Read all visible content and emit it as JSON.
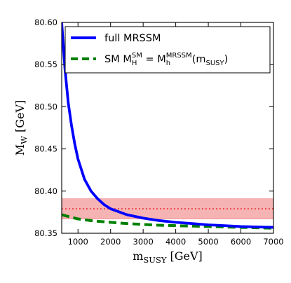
{
  "chart_data": {
    "type": "line",
    "title": "",
    "xlabel": {
      "base": "m",
      "sub": "SUSY",
      "unit": " [GeV]"
    },
    "ylabel": {
      "base": "M",
      "sub": "W",
      "unit": " [GeV]"
    },
    "xlim": [
      500,
      7000
    ],
    "ylim": [
      80.35,
      80.6
    ],
    "xticks": [
      1000,
      2000,
      3000,
      4000,
      5000,
      6000,
      7000
    ],
    "xtick_labels": [
      "1000",
      "2000",
      "3000",
      "4000",
      "5000",
      "6000",
      "7000"
    ],
    "yticks": [
      80.35,
      80.4,
      80.45,
      80.5,
      80.55,
      80.6
    ],
    "ytick_labels": [
      "80.35",
      "80.40",
      "80.45",
      "80.50",
      "80.55",
      "80.60"
    ],
    "legend_position": "top-right",
    "band": {
      "center": 80.379,
      "low": 80.367,
      "high": 80.391,
      "fill_color": "#f4a6a6",
      "line_color": "#e8383d"
    },
    "series": [
      {
        "name": "full MRSSM",
        "style": "solid",
        "color": "#0000ff",
        "x": [
          500,
          600,
          700,
          800,
          900,
          1000,
          1200,
          1400,
          1600,
          1800,
          2000,
          2500,
          3000,
          3500,
          4000,
          4500,
          5000,
          5500,
          6000,
          6500,
          7000
        ],
        "y": [
          80.6,
          80.545,
          80.505,
          80.478,
          80.456,
          80.438,
          80.414,
          80.4,
          80.391,
          80.384,
          80.379,
          80.372,
          80.368,
          80.365,
          80.363,
          80.3615,
          80.36,
          80.359,
          80.358,
          80.3575,
          80.357
        ]
      },
      {
        "name": "SM M_H^SM = M_h^MRSSM(m_SUSY)",
        "legend_parts": {
          "pre": "SM M",
          "sub1": "H",
          "sup1": "SM",
          "mid": " = M",
          "sub2": "h",
          "sup2": "MRSSM",
          "post1": "(m",
          "sub3": "SUSY",
          "post2": ")"
        },
        "style": "dashed",
        "color": "#008000",
        "x": [
          500,
          1000,
          1500,
          2000,
          2500,
          3000,
          3500,
          4000,
          4500,
          5000,
          5500,
          6000,
          6500,
          7000
        ],
        "y": [
          80.372,
          80.367,
          80.3645,
          80.363,
          80.3615,
          80.3605,
          80.3595,
          80.359,
          80.3585,
          80.358,
          80.3575,
          80.357,
          80.3565,
          80.356
        ]
      }
    ]
  }
}
